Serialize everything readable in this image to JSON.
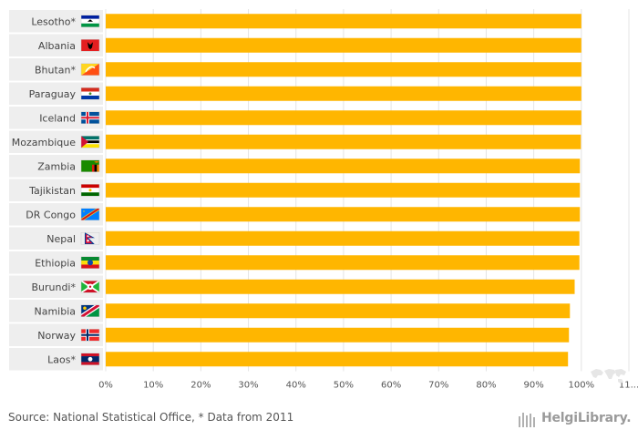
{
  "chart_data": {
    "type": "bar",
    "orientation": "horizontal",
    "bar_color": "#FFB600",
    "categories": [
      "Lesotho*",
      "Albania",
      "Bhutan*",
      "Paraguay",
      "Iceland",
      "Mozambique",
      "Zambia",
      "Tajikistan",
      "DR Congo",
      "Nepal",
      "Ethiopia",
      "Burundi*",
      "Namibia",
      "Norway",
      "Laos*"
    ],
    "values": [
      100,
      100,
      100,
      100,
      100,
      99.9,
      99.7,
      99.7,
      99.7,
      99.6,
      99.6,
      98.6,
      97.6,
      97.4,
      97.2
    ],
    "flags": [
      "lesotho-flag-icon",
      "albania-flag-icon",
      "bhutan-flag-icon",
      "paraguay-flag-icon",
      "iceland-flag-icon",
      "mozambique-flag-icon",
      "zambia-flag-icon",
      "tajikistan-flag-icon",
      "drcongo-flag-icon",
      "nepal-flag-icon",
      "ethiopia-flag-icon",
      "burundi-flag-icon",
      "namibia-flag-icon",
      "norway-flag-icon",
      "laos-flag-icon"
    ],
    "x_ticks": [
      "0%",
      "10%",
      "20%",
      "30%",
      "40%",
      "50%",
      "60%",
      "70%",
      "80%",
      "90%",
      "100%",
      "11..."
    ],
    "xlim": [
      0,
      110
    ],
    "title": "",
    "xlabel": "",
    "ylabel": ""
  },
  "footer": {
    "source": "Source: National Statistical Office, * Data from 2011",
    "logo_text": "HelgiLibrary."
  }
}
